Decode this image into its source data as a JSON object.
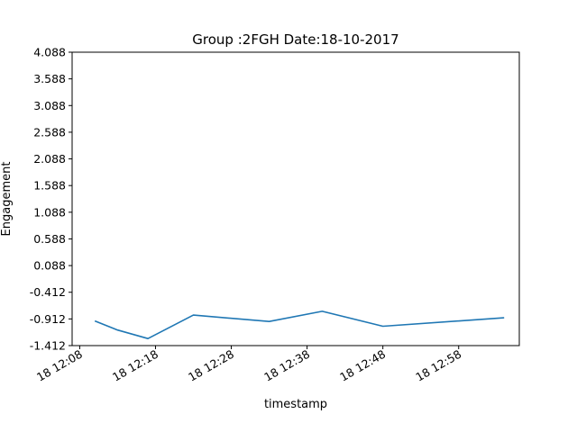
{
  "chart_data": {
    "type": "line",
    "title": "Group :2FGH Date:18-10-2017",
    "xlabel": "timestamp",
    "ylabel": "Engagement",
    "x": [
      "2017-10-18 12:10",
      "2017-10-18 12:13",
      "2017-10-18 12:17",
      "2017-10-18 12:23",
      "2017-10-18 12:33",
      "2017-10-18 12:40",
      "2017-10-18 12:48",
      "2017-10-18 13:04"
    ],
    "series": [
      {
        "values": [
          -0.95,
          -1.12,
          -1.28,
          -0.84,
          -0.96,
          -0.77,
          -1.05,
          -0.89
        ]
      }
    ],
    "xlim": [
      "2017-10-18 12:07",
      "2017-10-18 13:06"
    ],
    "ylim": [
      -1.412,
      4.088
    ],
    "yticks": [
      "4.088",
      "3.588",
      "3.088",
      "2.588",
      "2.088",
      "1.588",
      "1.088",
      "0.588",
      "0.088",
      "-0.412",
      "-0.912",
      "-1.412"
    ],
    "xticks": [
      {
        "t": "2017-10-18 12:08",
        "label": "18 12:08"
      },
      {
        "t": "2017-10-18 12:18",
        "label": "18 12:18"
      },
      {
        "t": "2017-10-18 12:28",
        "label": "18 12:28"
      },
      {
        "t": "2017-10-18 12:38",
        "label": "18 12:38"
      },
      {
        "t": "2017-10-18 12:48",
        "label": "18 12:48"
      },
      {
        "t": "2017-10-18 12:58",
        "label": "18 12:58"
      }
    ],
    "grid": false,
    "line_color": "#1f77b4"
  }
}
